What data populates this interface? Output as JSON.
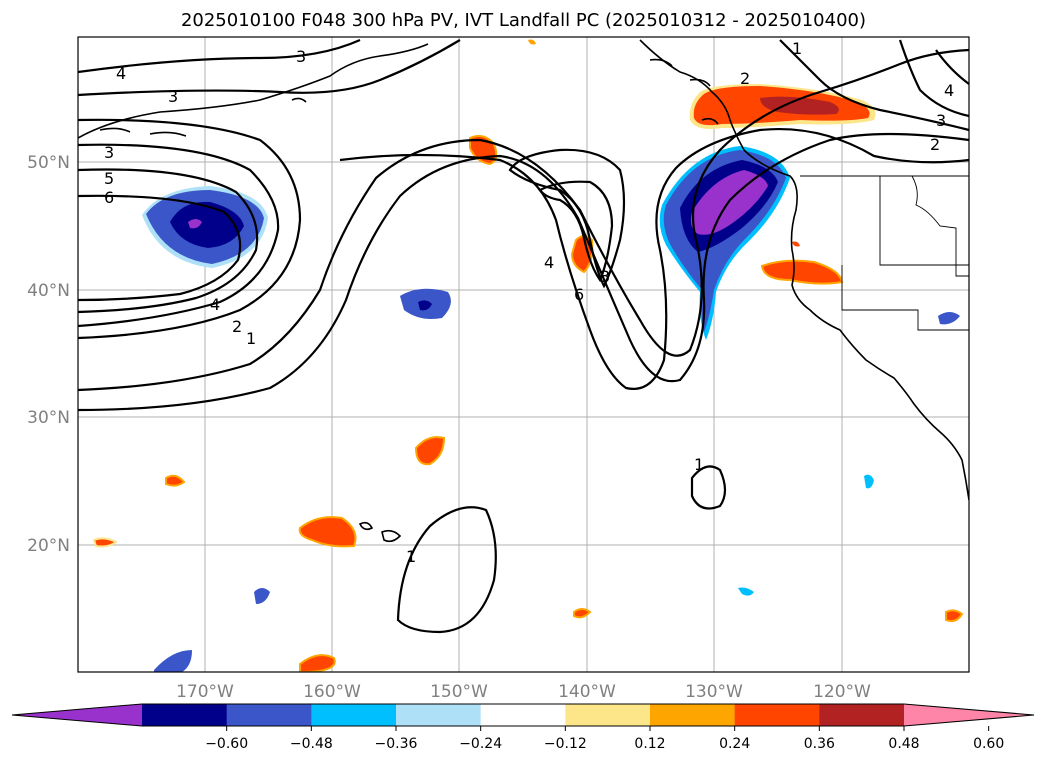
{
  "title": "2025010100 F048 300 hPa PV, IVT Landfall PC (2025010312 - 2025010400)",
  "lat_labels": [
    "50°N",
    "40°N",
    "30°N",
    "20°N"
  ],
  "lon_labels": [
    "170°W",
    "160°W",
    "150°W",
    "140°W",
    "130°W",
    "120°W"
  ],
  "contour_labels": [
    "1",
    "2",
    "3",
    "4",
    "5",
    "6"
  ],
  "colorbar": {
    "ticks": [
      "−0.60",
      "−0.48",
      "−0.36",
      "−0.24",
      "−0.12",
      "0.12",
      "0.24",
      "0.36",
      "0.48",
      "0.60"
    ],
    "colors": [
      "#9932cc",
      "#00008b",
      "#3a56c8",
      "#00bfff",
      "#aee1f7",
      "#ffffff",
      "#fde68a",
      "#ffa500",
      "#ff4500",
      "#b22222",
      "#ff85a8"
    ]
  }
}
